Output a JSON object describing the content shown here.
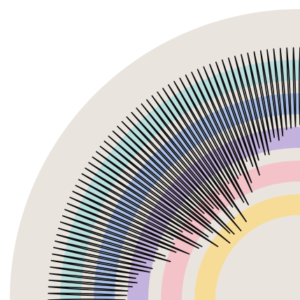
{
  "artwork": {
    "background_color": "#ffffff",
    "disc_color": "#e9e4de",
    "needle_color": "#0b0b0b",
    "needle_count": 60,
    "bands": [
      {
        "name": "teal",
        "color": "#b9e0df"
      },
      {
        "name": "blue",
        "color": "#abc1ea"
      },
      {
        "name": "purple",
        "color": "#c3b2dd"
      },
      {
        "name": "pink",
        "color": "#f3c3c9"
      },
      {
        "name": "yellow",
        "color": "#f7dc98"
      }
    ]
  }
}
